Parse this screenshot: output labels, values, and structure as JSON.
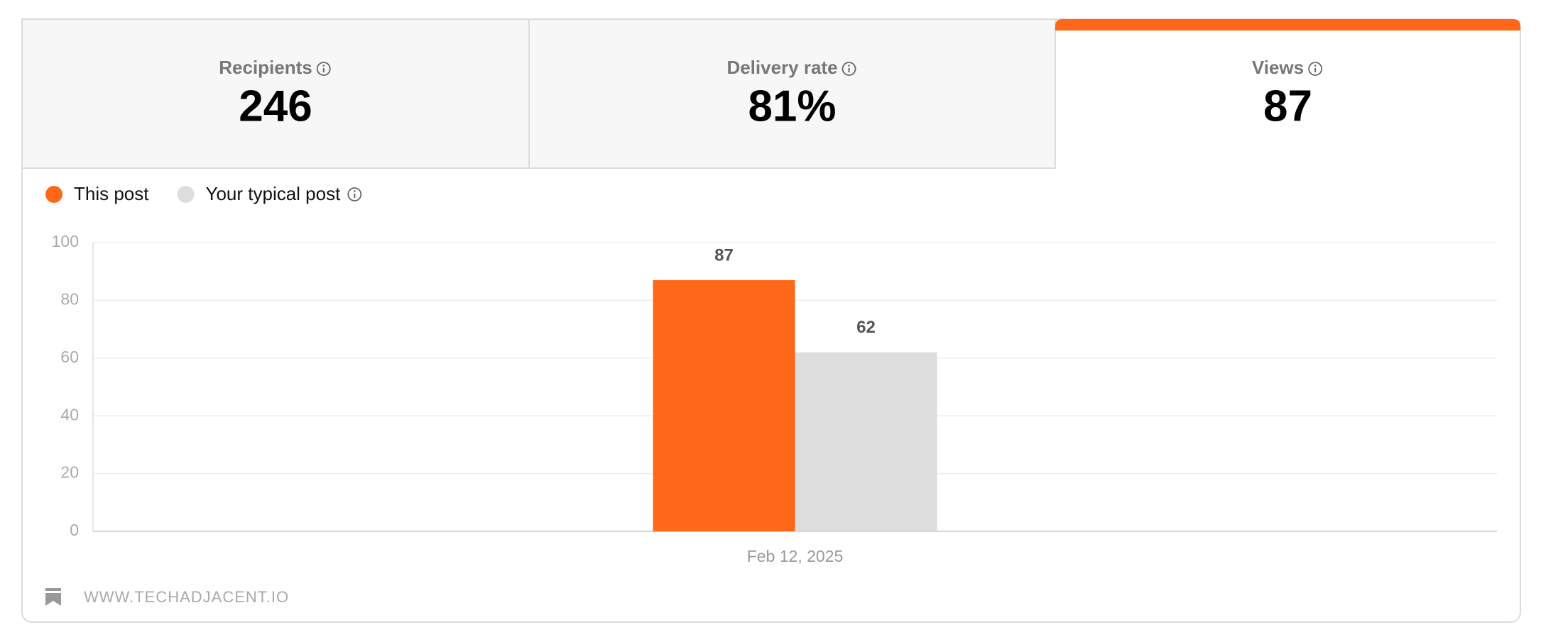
{
  "metrics": [
    {
      "label": "Recipients",
      "value": "246"
    },
    {
      "label": "Delivery rate",
      "value": "81%"
    },
    {
      "label": "Views",
      "value": "87"
    }
  ],
  "chart_data": {
    "type": "bar",
    "categories": [
      "Feb 12, 2025"
    ],
    "series": [
      {
        "name": "This post",
        "color": "#ff6719",
        "values": [
          87
        ]
      },
      {
        "name": "Your typical post",
        "color": "#dddddd",
        "values": [
          62
        ]
      }
    ],
    "ylim": [
      0,
      100
    ],
    "yticks": [
      0,
      20,
      40,
      60,
      80,
      100
    ],
    "grid": true
  },
  "footer": "WWW.TECHADJACENT.IO"
}
